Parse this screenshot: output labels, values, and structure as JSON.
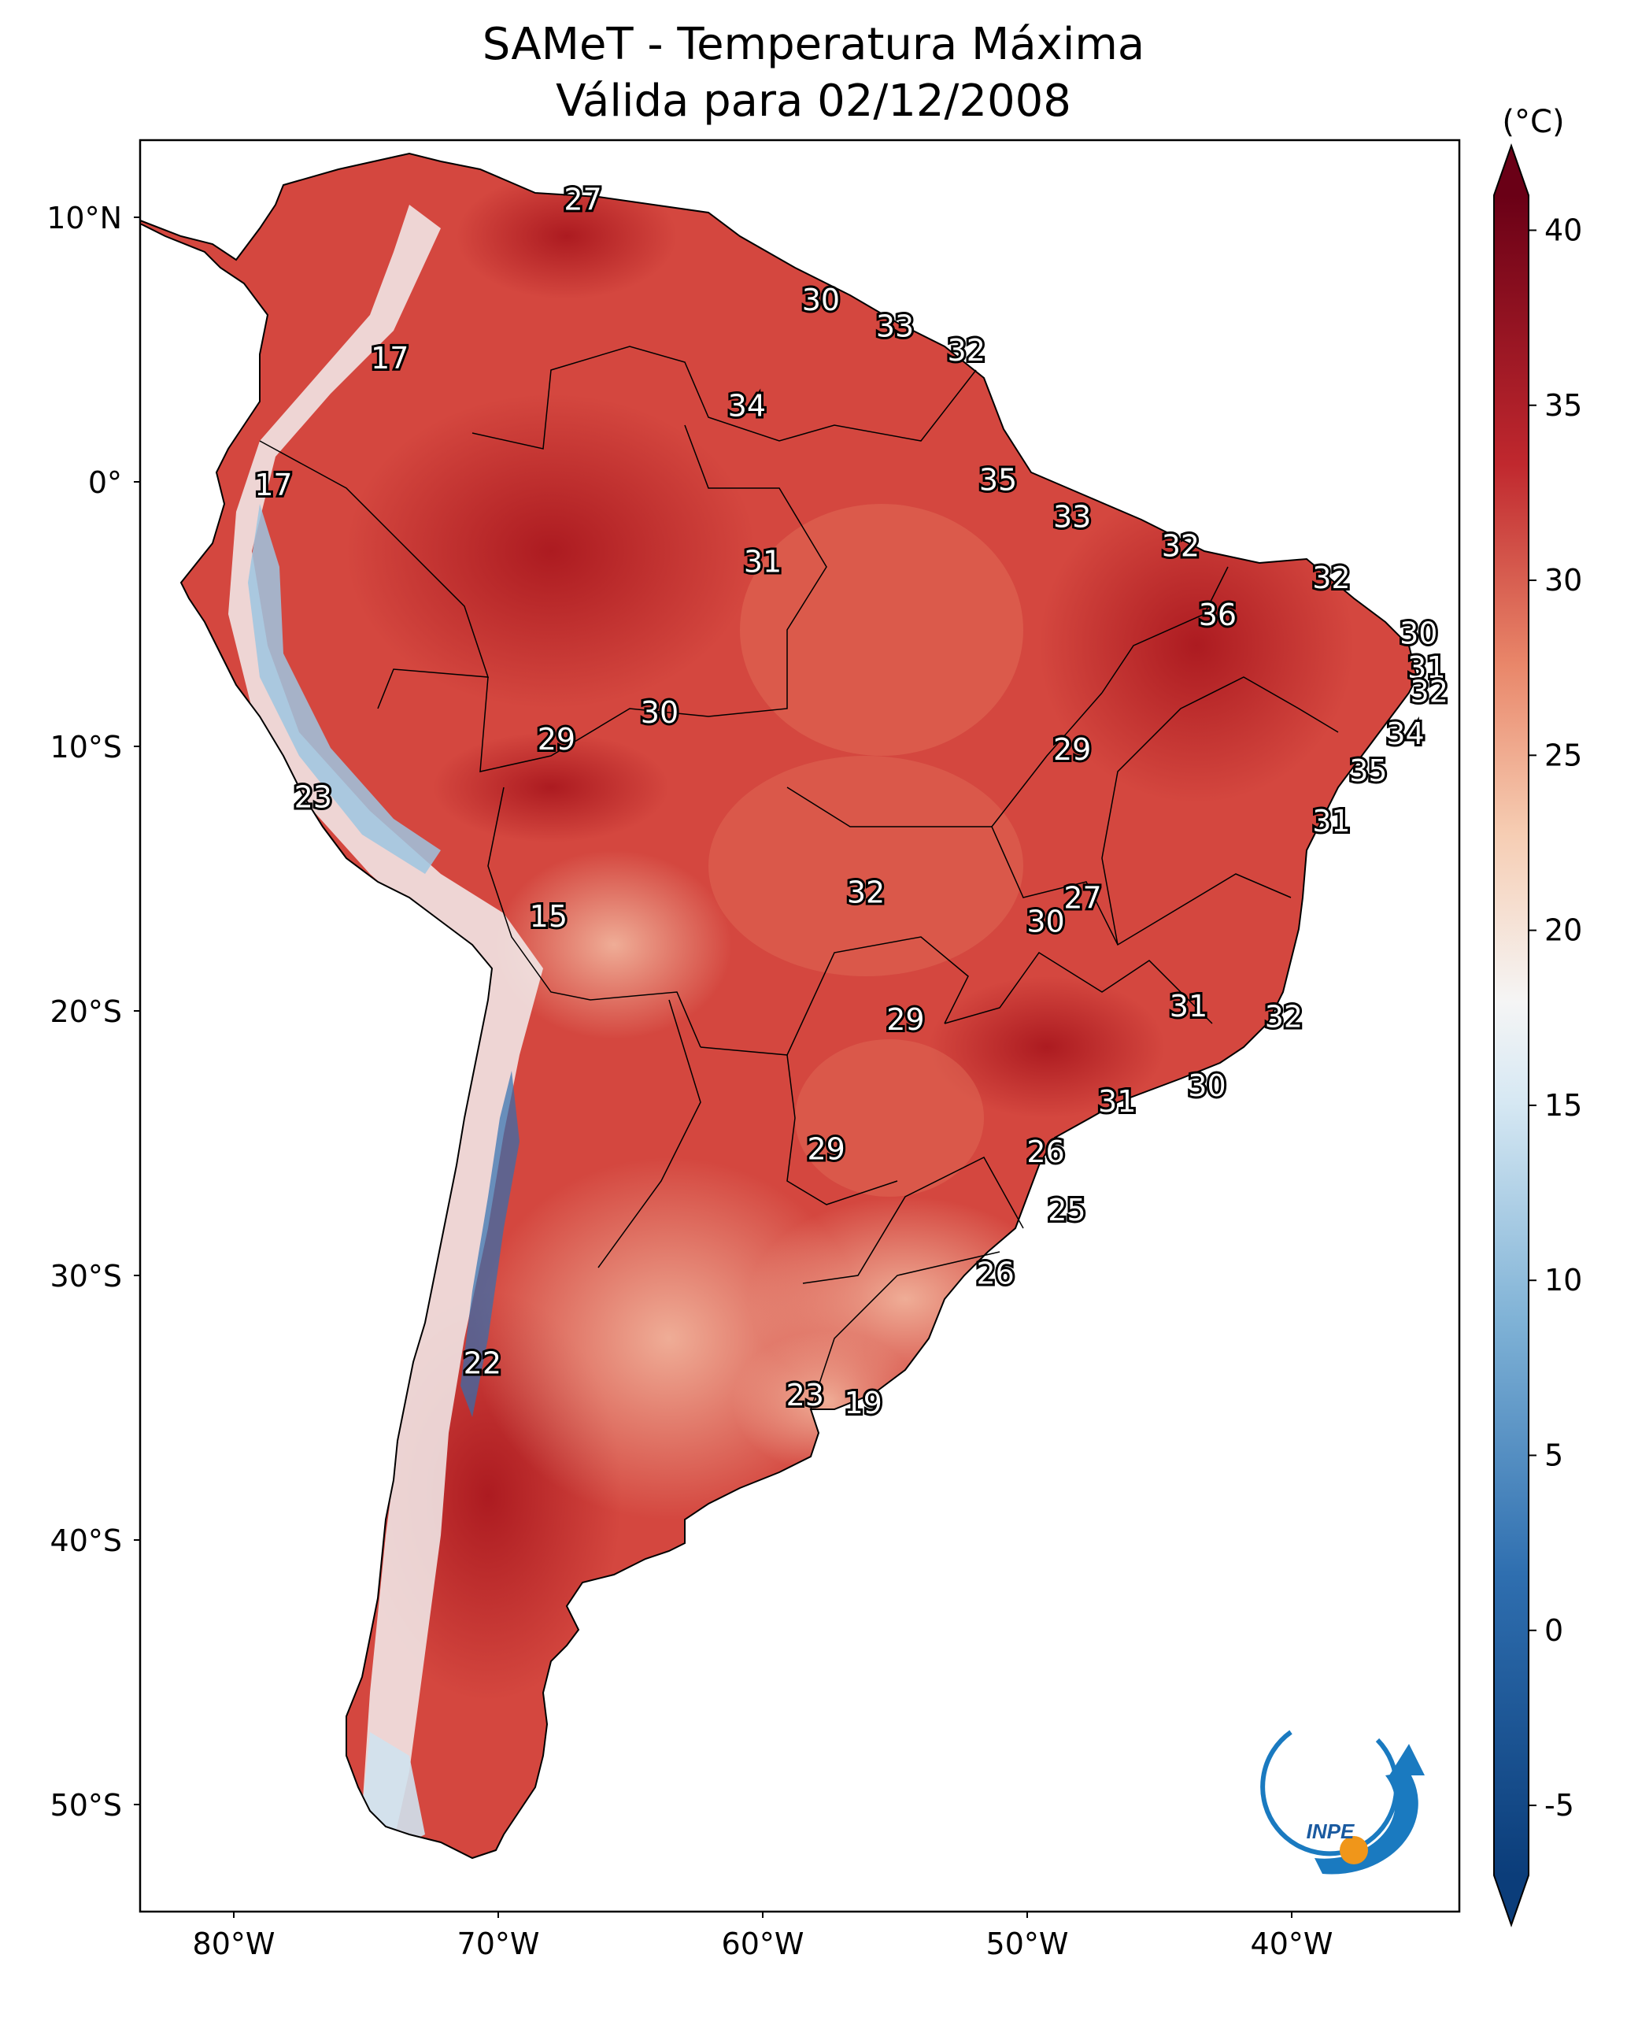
{
  "title": {
    "line1": "SAMeT - Temperatura Máxima",
    "line2": "Válida para 02/12/2008"
  },
  "axes": {
    "lat_labels": [
      "10°N",
      "0°",
      "10°S",
      "20°S",
      "30°S",
      "40°S",
      "50°S"
    ],
    "lon_labels": [
      "80°W",
      "70°W",
      "60°W",
      "50°W",
      "40°W"
    ]
  },
  "colorbar": {
    "unit": "(°C)",
    "ticks": [
      "40",
      "35",
      "30",
      "25",
      "20",
      "15",
      "10",
      "5",
      "0",
      "-5"
    ],
    "min": -7,
    "max": 41,
    "colors": {
      "cold": "#0b3d7a",
      "cool": "#4a90c4",
      "neutral": "#f5f5f5",
      "warm": "#e9876a",
      "hot": "#c0282e",
      "extreme": "#6a0016"
    }
  },
  "logo": {
    "text": "INPE"
  },
  "station_labels": [
    {
      "value": "27",
      "lat": 10.6,
      "lon": -66.8
    },
    {
      "value": "30",
      "lat": 6.8,
      "lon": -57.8
    },
    {
      "value": "33",
      "lat": 5.8,
      "lon": -55.0
    },
    {
      "value": "32",
      "lat": 4.9,
      "lon": -52.3
    },
    {
      "value": "34",
      "lat": 2.8,
      "lon": -60.6
    },
    {
      "value": "17",
      "lat": 4.6,
      "lon": -74.1
    },
    {
      "value": "35",
      "lat": 0.0,
      "lon": -51.1
    },
    {
      "value": "17",
      "lat": -0.2,
      "lon": -78.5
    },
    {
      "value": "33",
      "lat": -1.4,
      "lon": -48.3
    },
    {
      "value": "31",
      "lat": -3.1,
      "lon": -60.0
    },
    {
      "value": "32",
      "lat": -2.5,
      "lon": -44.2
    },
    {
      "value": "32",
      "lat": -3.7,
      "lon": -38.5
    },
    {
      "value": "36",
      "lat": -5.1,
      "lon": -42.8
    },
    {
      "value": "30",
      "lat": -5.8,
      "lon": -35.2
    },
    {
      "value": "31",
      "lat": -7.1,
      "lon": -34.9
    },
    {
      "value": "32",
      "lat": -8.0,
      "lon": -34.8
    },
    {
      "value": "30",
      "lat": -8.8,
      "lon": -63.9
    },
    {
      "value": "29",
      "lat": -9.8,
      "lon": -67.8
    },
    {
      "value": "34",
      "lat": -9.6,
      "lon": -35.7
    },
    {
      "value": "29",
      "lat": -10.2,
      "lon": -48.3
    },
    {
      "value": "35",
      "lat": -11.0,
      "lon": -37.1
    },
    {
      "value": "23",
      "lat": -12.0,
      "lon": -77.0
    },
    {
      "value": "31",
      "lat": -12.9,
      "lon": -38.5
    },
    {
      "value": "27",
      "lat": -15.8,
      "lon": -47.9
    },
    {
      "value": "32",
      "lat": -15.6,
      "lon": -56.1
    },
    {
      "value": "30",
      "lat": -16.7,
      "lon": -49.3
    },
    {
      "value": "15",
      "lat": -16.5,
      "lon": -68.1
    },
    {
      "value": "31",
      "lat": -19.9,
      "lon": -43.9
    },
    {
      "value": "32",
      "lat": -20.3,
      "lon": -40.3
    },
    {
      "value": "29",
      "lat": -20.4,
      "lon": -54.6
    },
    {
      "value": "30",
      "lat": -22.9,
      "lon": -43.2
    },
    {
      "value": "31",
      "lat": -23.5,
      "lon": -46.6
    },
    {
      "value": "26",
      "lat": -25.4,
      "lon": -49.3
    },
    {
      "value": "29",
      "lat": -25.3,
      "lon": -57.6
    },
    {
      "value": "25",
      "lat": -27.6,
      "lon": -48.5
    },
    {
      "value": "26",
      "lat": -30.0,
      "lon": -51.2
    },
    {
      "value": "22",
      "lat": -33.4,
      "lon": -70.6
    },
    {
      "value": "23",
      "lat": -34.6,
      "lon": -58.4
    },
    {
      "value": "19",
      "lat": -34.9,
      "lon": -56.2
    }
  ]
}
